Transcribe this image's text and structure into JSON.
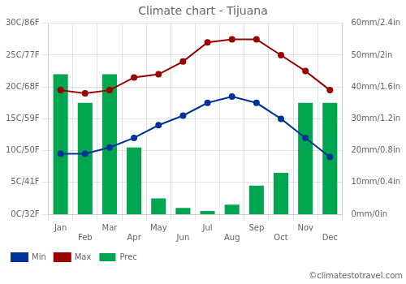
{
  "chart_data": {
    "type": "bar",
    "title": "Climate chart - Tijuana",
    "categories": [
      "Jan",
      "Feb",
      "Mar",
      "Apr",
      "May",
      "Jun",
      "Jul",
      "Aug",
      "Sep",
      "Oct",
      "Nov",
      "Dec"
    ],
    "series": [
      {
        "name": "Prec",
        "type": "bar",
        "color": "#00a550",
        "axis": "y2",
        "values": [
          44,
          35,
          44,
          21,
          5,
          2,
          1,
          3,
          9,
          13,
          35,
          35
        ]
      },
      {
        "name": "Min",
        "type": "line",
        "color": "#003399",
        "marker": "circle",
        "values": [
          9.5,
          9.5,
          10.5,
          12,
          14,
          15.5,
          17.5,
          18.5,
          17.5,
          15,
          12,
          9
        ]
      },
      {
        "name": "Max",
        "type": "line",
        "color": "#990000",
        "marker": "circle",
        "values": [
          19.5,
          19,
          19.5,
          21.5,
          22,
          24,
          27,
          27.5,
          27.5,
          25,
          22.5,
          19.5
        ]
      }
    ],
    "ylim": [
      0,
      30
    ],
    "yticks": [
      {
        "value": 0,
        "label": "0C/32F"
      },
      {
        "value": 5,
        "label": "5C/41F"
      },
      {
        "value": 10,
        "label": "10C/50F"
      },
      {
        "value": 15,
        "label": "15C/59F"
      },
      {
        "value": 20,
        "label": "20C/68F"
      },
      {
        "value": 25,
        "label": "25C/77F"
      },
      {
        "value": 30,
        "label": "30C/86F"
      }
    ],
    "y2lim": [
      0,
      60
    ],
    "y2ticks": [
      {
        "value": 0,
        "label": "0mm/0in"
      },
      {
        "value": 10,
        "label": "10mm/0.4in"
      },
      {
        "value": 20,
        "label": "20mm/0.8in"
      },
      {
        "value": 30,
        "label": "30mm/1.2in"
      },
      {
        "value": 40,
        "label": "40mm/1.6in"
      },
      {
        "value": 50,
        "label": "50mm/2in"
      },
      {
        "value": 60,
        "label": "60mm/2.4in"
      }
    ],
    "grid": true,
    "legend": "bottom",
    "annotations": [
      "©climatestotravel.com"
    ]
  }
}
